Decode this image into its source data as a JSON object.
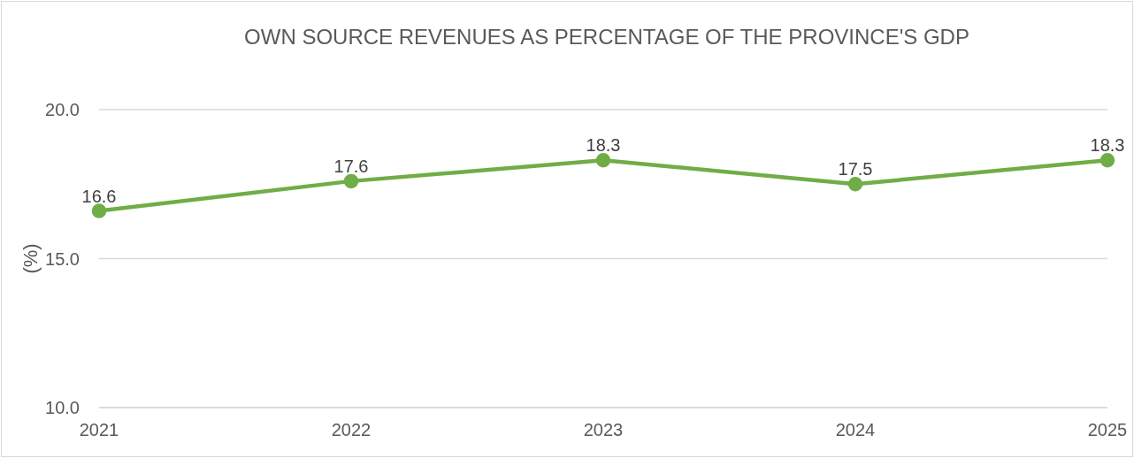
{
  "chart_data": {
    "type": "line",
    "title": "OWN SOURCE REVENUES AS PERCENTAGE OF THE PROVINCE'S GDP",
    "ylabel": "(%)",
    "categories": [
      "2021",
      "2022",
      "2023",
      "2024",
      "2025"
    ],
    "series": [
      {
        "color": "#70ad47",
        "values": [
          16.6,
          17.6,
          18.3,
          17.5,
          18.3
        ]
      }
    ],
    "ylim": [
      10,
      20
    ],
    "yticks": [
      {
        "value": 10,
        "label": "10.0"
      },
      {
        "value": 15,
        "label": "15.0"
      },
      {
        "value": 20,
        "label": "20.0"
      }
    ],
    "grid": "y",
    "marker": "circle",
    "line_style": "solid",
    "data_labels": true
  }
}
